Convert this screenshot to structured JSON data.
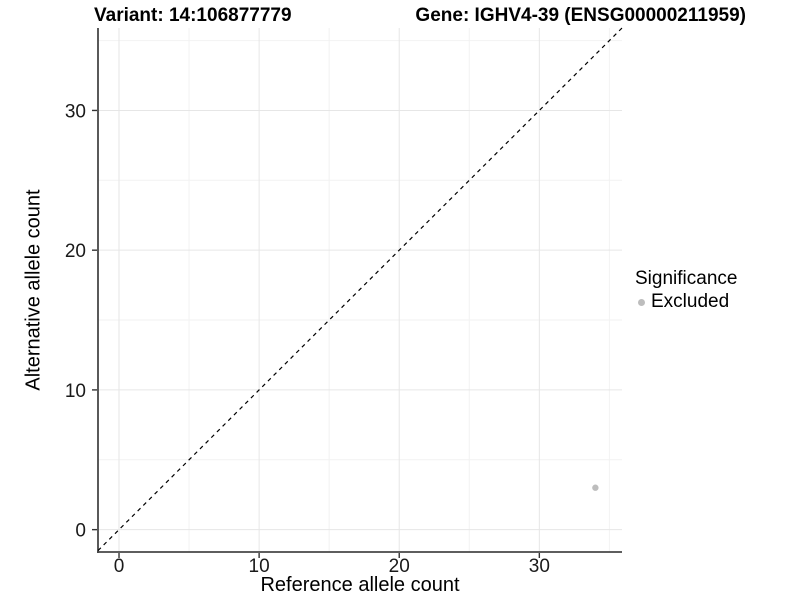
{
  "chart_data": {
    "type": "scatter",
    "titles": {
      "left": "Variant: 14:106877779",
      "right": "Gene: IGHV4-39 (ENSG00000211959)"
    },
    "xlabel": "Reference allele count",
    "ylabel": "Alternative allele count",
    "xlim": [
      -1.5,
      35.9
    ],
    "ylim": [
      -1.6,
      35.9
    ],
    "xticks": [
      0,
      10,
      20,
      30
    ],
    "yticks": [
      0,
      10,
      20,
      30
    ],
    "minor_xticks": [
      5,
      15,
      25,
      35
    ],
    "minor_yticks": [
      5,
      15,
      25,
      35
    ],
    "grid": "major and minor, very light gray, white background",
    "abline": {
      "slope": 1,
      "intercept": 0,
      "style": "dashed",
      "color": "#000000"
    },
    "points": [
      {
        "x": 34,
        "y": 3,
        "significance": "Excluded"
      }
    ],
    "legend": {
      "title": "Significance",
      "position": "right",
      "items": [
        {
          "label": "Excluded",
          "color": "#bdbdbd"
        }
      ]
    },
    "colors": {
      "point": "#bdbdbd",
      "grid_major": "#e6e6e6",
      "grid_minor": "#f2f2f2",
      "axis_line": "#474747",
      "tick_mark": "#333333",
      "tick_label": "#1a1a1a",
      "title": "#000000"
    }
  }
}
